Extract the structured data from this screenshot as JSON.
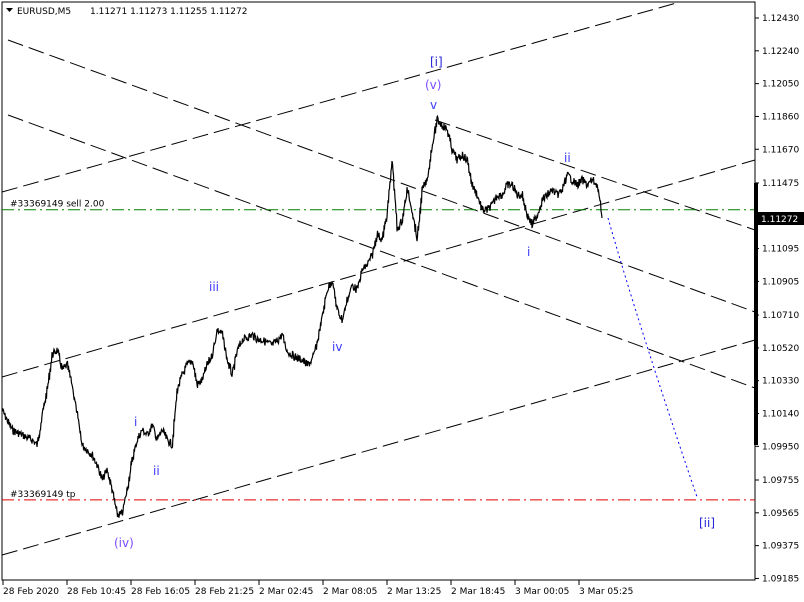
{
  "header": {
    "symbol_timeframe": "EURUSD,M5",
    "ohlc": "1.11271 1.11273 1.11255 1.11272",
    "menu_icon": "triangle-down-icon"
  },
  "price_axis": {
    "ticks": [
      "1.12430",
      "1.12240",
      "1.12050",
      "1.11860",
      "1.11670",
      "1.11475",
      "1.11095",
      "1.10905",
      "1.10710",
      "1.10520",
      "1.10330",
      "1.10140",
      "1.09950",
      "1.09755",
      "1.09565",
      "1.09375",
      "1.09185"
    ],
    "current_price": "1.11272"
  },
  "time_axis": {
    "ticks": [
      "28 Feb 2020",
      "28 Feb 10:45",
      "28 Feb 16:05",
      "28 Feb 21:25",
      "2 Mar 02:45",
      "2 Mar 08:05",
      "2 Mar 13:25",
      "2 Mar 18:45",
      "3 Mar 00:05",
      "3 Mar 05:25"
    ]
  },
  "order_lines": {
    "sell": {
      "label": "#33369149 sell 2.00",
      "price": 1.1132,
      "color": "#008000"
    },
    "tp": {
      "label": "#33369149 tp",
      "price": 1.0964,
      "color": "#e00000"
    }
  },
  "wave_labels": [
    {
      "text": "[i]",
      "color": "#2424d8"
    },
    {
      "text": "(v)",
      "color": "#7a4cff"
    },
    {
      "text": "v",
      "color": "#3a3aff"
    },
    {
      "text": "ii",
      "color": "#3a3aff"
    },
    {
      "text": "i",
      "color": "#3a3aff"
    },
    {
      "text": "iii",
      "color": "#3a3aff"
    },
    {
      "text": "iv",
      "color": "#3a3aff"
    },
    {
      "text": "i",
      "color": "#3a3aff"
    },
    {
      "text": "ii",
      "color": "#3a3aff"
    },
    {
      "text": "(iv)",
      "color": "#7a4cff"
    },
    {
      "text": "[ii]",
      "color": "#2424d8"
    }
  ],
  "colors": {
    "price_line": "#000000",
    "trendlines": "#000000",
    "projection": "#0000ff"
  },
  "chart_data": {
    "type": "line",
    "ylim": [
      1.0909,
      1.1253
    ],
    "price_path": [
      1.1016,
      1.101,
      1.10045,
      1.1003,
      1.10016,
      1.1,
      1.09987,
      1.09958,
      1.10131,
      1.10276,
      1.10479,
      1.10508,
      1.10392,
      1.10421,
      1.10305,
      1.10131,
      1.09958,
      1.09929,
      1.099,
      1.09842,
      1.09755,
      1.09813,
      1.09697,
      1.09552,
      1.0956,
      1.097,
      1.09871,
      1.09987,
      1.10045,
      1.10016,
      1.10073,
      1.09987,
      1.10045,
      1.09987,
      1.09958,
      1.10276,
      1.10363,
      1.10421,
      1.1045,
      1.10305,
      1.10334,
      1.10421,
      1.10479,
      1.10624,
      1.106,
      1.1045,
      1.1036,
      1.105,
      1.10566,
      1.1058,
      1.10595,
      1.1057,
      1.10566,
      1.1055,
      1.10537,
      1.1056,
      1.10595,
      1.105,
      1.10479,
      1.1046,
      1.1045,
      1.1042,
      1.1045,
      1.1055,
      1.107,
      1.10855,
      1.10913,
      1.10739,
      1.10681,
      1.10797,
      1.10884,
      1.10855,
      1.10971,
      1.11,
      1.11058,
      1.1118,
      1.11145,
      1.113,
      1.11608,
      1.11203,
      1.1126,
      1.11434,
      1.11318,
      1.11145,
      1.11434,
      1.11492,
      1.11695,
      1.11839,
      1.1181,
      1.11782,
      1.11666,
      1.11608,
      1.11637,
      1.11608,
      1.11463,
      1.11405,
      1.11318,
      1.11318,
      1.11347,
      1.11405,
      1.11405,
      1.11463,
      1.11463,
      1.11405,
      1.11405,
      1.11289,
      1.11231,
      1.11289,
      1.11376,
      1.11405,
      1.11434,
      1.11405,
      1.11434,
      1.11521,
      1.11492,
      1.11463,
      1.11492,
      1.11463,
      1.11492,
      1.11463,
      1.11272
    ]
  }
}
